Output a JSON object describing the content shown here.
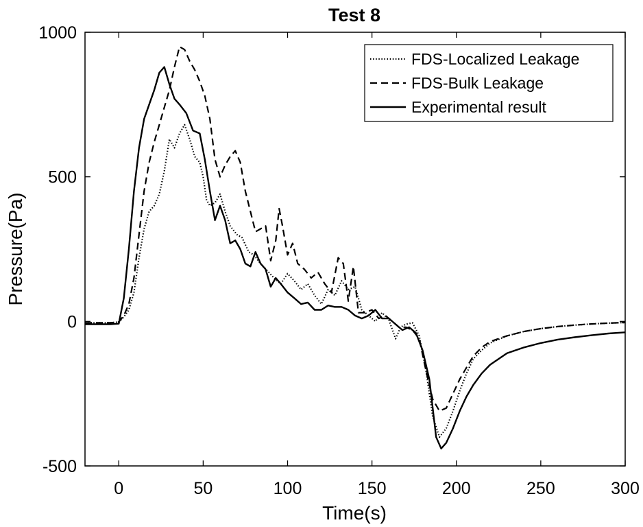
{
  "chart_data": {
    "type": "line",
    "title": "Test 8",
    "xlabel": "Time(s)",
    "ylabel": "Pressure(Pa)",
    "xlim": [
      -20,
      300
    ],
    "ylim": [
      -500,
      1000
    ],
    "xticks": [
      0,
      50,
      100,
      150,
      200,
      250,
      300
    ],
    "yticks": [
      -500,
      0,
      500,
      1000
    ],
    "xtick_labels": [
      "0",
      "50",
      "100",
      "150",
      "200",
      "250",
      "300"
    ],
    "ytick_labels": [
      "-500",
      "0",
      "500",
      "1000"
    ],
    "grid": false,
    "legend_position": "top-right",
    "series": [
      {
        "name": "FDS-Localized Leakage",
        "style": "dotted",
        "x": [
          -20,
          -5,
          0,
          3,
          6,
          9,
          12,
          15,
          18,
          21,
          24,
          27,
          30,
          33,
          36,
          39,
          42,
          45,
          48,
          50,
          52,
          54,
          57,
          60,
          63,
          66,
          70,
          73,
          77,
          80,
          84,
          88,
          92,
          96,
          100,
          104,
          108,
          112,
          116,
          120,
          124,
          128,
          132,
          136,
          140,
          144,
          148,
          152,
          156,
          160,
          164,
          167,
          170,
          174,
          178,
          182,
          186,
          190,
          194,
          198,
          202,
          206,
          210,
          215,
          220,
          230,
          240,
          250,
          260,
          270,
          280,
          290,
          300
        ],
        "y": [
          -5,
          -5,
          -2,
          15,
          40,
          100,
          220,
          320,
          380,
          400,
          440,
          520,
          630,
          600,
          650,
          680,
          630,
          570,
          550,
          500,
          420,
          400,
          410,
          440,
          380,
          330,
          300,
          290,
          240,
          230,
          200,
          175,
          150,
          130,
          165,
          140,
          110,
          130,
          90,
          60,
          110,
          90,
          140,
          110,
          120,
          40,
          20,
          0,
          30,
          5,
          -60,
          -20,
          -10,
          -5,
          -50,
          -170,
          -330,
          -400,
          -370,
          -310,
          -240,
          -180,
          -130,
          -100,
          -75,
          -50,
          -35,
          -25,
          -18,
          -13,
          -9,
          -6,
          -4
        ]
      },
      {
        "name": "FDS-Bulk Leakage",
        "style": "dashed",
        "x": [
          -20,
          -5,
          0,
          3,
          6,
          9,
          12,
          15,
          18,
          21,
          24,
          27,
          30,
          33,
          36,
          39,
          42,
          45,
          48,
          51,
          54,
          57,
          60,
          63,
          66,
          69,
          72,
          75,
          78,
          81,
          84,
          87,
          90,
          93,
          95,
          97,
          100,
          103,
          106,
          110,
          114,
          118,
          122,
          126,
          130,
          133,
          136,
          139,
          142,
          146,
          150,
          154,
          158,
          162,
          166,
          170,
          174,
          178,
          182,
          186,
          190,
          194,
          198,
          202,
          206,
          210,
          215,
          220,
          230,
          240,
          250,
          260,
          270,
          280,
          290,
          300
        ],
        "y": [
          -5,
          -5,
          -2,
          20,
          60,
          150,
          300,
          450,
          550,
          620,
          680,
          740,
          800,
          880,
          950,
          940,
          900,
          870,
          830,
          780,
          700,
          560,
          500,
          540,
          570,
          590,
          550,
          450,
          380,
          310,
          320,
          330,
          210,
          280,
          390,
          330,
          230,
          270,
          200,
          180,
          150,
          170,
          130,
          100,
          220,
          200,
          70,
          190,
          30,
          30,
          40,
          10,
          20,
          0,
          -20,
          -20,
          -30,
          -60,
          -170,
          -270,
          -310,
          -300,
          -250,
          -200,
          -160,
          -120,
          -90,
          -70,
          -50,
          -35,
          -25,
          -18,
          -13,
          -9,
          -6,
          -4
        ]
      },
      {
        "name": "Experimental result",
        "style": "solid",
        "x": [
          -20,
          -5,
          0,
          3,
          6,
          9,
          12,
          15,
          18,
          21,
          24,
          27,
          30,
          33,
          36,
          40,
          44,
          48,
          51,
          54,
          57,
          60,
          63,
          66,
          69,
          72,
          75,
          78,
          81,
          84,
          87,
          90,
          93,
          96,
          100,
          104,
          108,
          112,
          116,
          120,
          124,
          128,
          132,
          136,
          140,
          144,
          148,
          152,
          156,
          160,
          164,
          168,
          172,
          176,
          180,
          184,
          188,
          191,
          194,
          198,
          202,
          206,
          210,
          215,
          220,
          230,
          240,
          250,
          260,
          270,
          280,
          290,
          300
        ],
        "y": [
          -10,
          -10,
          -8,
          80,
          250,
          450,
          600,
          700,
          750,
          800,
          860,
          880,
          820,
          770,
          750,
          720,
          660,
          650,
          560,
          450,
          350,
          400,
          350,
          270,
          280,
          250,
          200,
          190,
          240,
          200,
          180,
          120,
          150,
          130,
          100,
          80,
          60,
          65,
          40,
          40,
          55,
          50,
          50,
          40,
          20,
          10,
          20,
          40,
          10,
          10,
          -10,
          -30,
          -20,
          -40,
          -100,
          -200,
          -400,
          -440,
          -420,
          -370,
          -310,
          -260,
          -220,
          -180,
          -150,
          -110,
          -90,
          -75,
          -63,
          -55,
          -48,
          -42,
          -38
        ]
      }
    ]
  }
}
